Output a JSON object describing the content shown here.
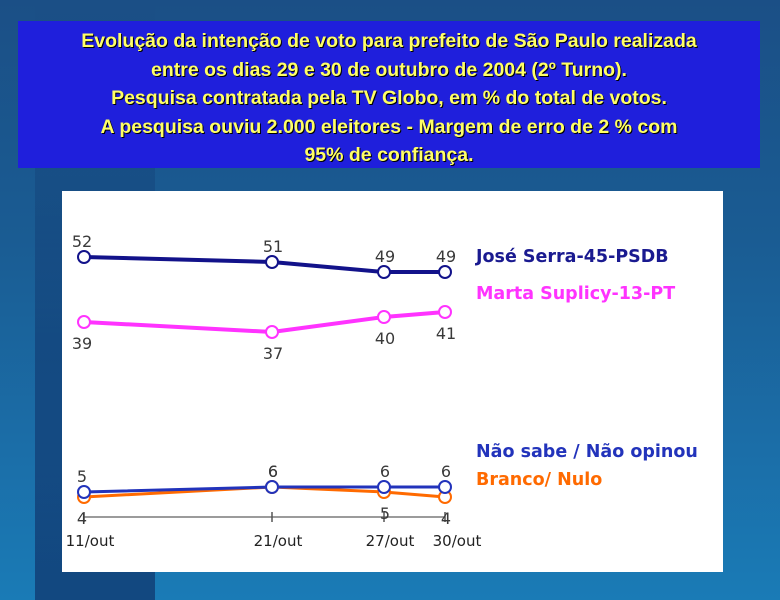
{
  "title_lines": [
    "Evolução da intenção de voto para prefeito de São Paulo realizada",
    "entre os dias 29 e 30 de outubro de 2004 (2º Turno).",
    "Pesquisa contratada pela TV Globo, em % do total de votos.",
    "A pesquisa ouviu 2.000 eleitores - Margem de erro de 2 % com",
    "95% de confiança."
  ],
  "chart_data": {
    "type": "line",
    "categories": [
      "11/out",
      "21/out",
      "27/out",
      "30/out"
    ],
    "ylim": [
      0,
      55
    ],
    "grid": false,
    "legend": "right",
    "series": [
      {
        "name": "José Serra-45-PSDB",
        "values": [
          52,
          51,
          49,
          49
        ],
        "color": "#12128a",
        "legend_color": "#1a1a90"
      },
      {
        "name": "Marta Suplicy-13-PT",
        "values": [
          39,
          37,
          40,
          41
        ],
        "color": "#ff33ff",
        "legend_color": "#ff33ff"
      },
      {
        "name": "Não sabe / Não opinou",
        "values": [
          5,
          6,
          6,
          6
        ],
        "color": "#2233bb",
        "legend_color": "#2233bb"
      },
      {
        "name": "Branco/ Nulo",
        "values": [
          4,
          6,
          5,
          4
        ],
        "color": "#ff6a00",
        "legend_color": "#ff6a00"
      }
    ]
  }
}
